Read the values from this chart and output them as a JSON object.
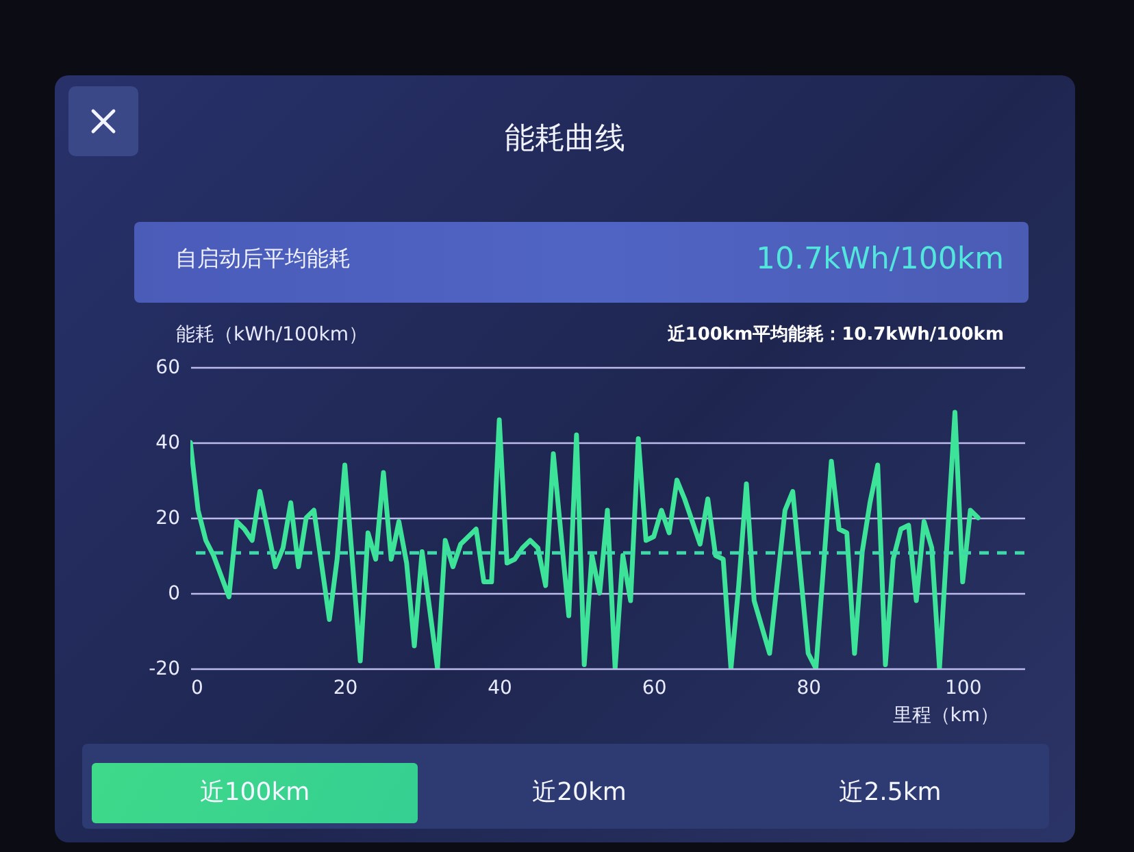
{
  "chart_data": {
    "type": "line",
    "title": "能耗曲线",
    "xlabel": "里程（km）",
    "ylabel": "能耗（kWh/100km）",
    "annotations": [
      "自启动后平均能耗",
      "10.7kWh/100km",
      "近100km平均能耗：10.7kWh/100km",
      "近100km",
      "近20km",
      "近2.5km"
    ],
    "x": [
      0,
      1,
      2,
      3,
      5,
      6,
      7,
      8,
      9,
      11,
      12,
      13,
      14,
      15,
      16,
      18,
      19,
      20,
      22,
      23,
      24,
      25,
      26,
      27,
      28,
      29,
      30,
      32,
      33,
      34,
      35,
      37,
      38,
      39,
      40,
      41,
      42,
      43,
      44,
      45,
      46,
      47,
      49,
      50,
      51,
      52,
      53,
      54,
      55,
      56,
      57,
      58,
      59,
      60,
      61,
      62,
      63,
      64,
      66,
      67,
      68,
      69,
      70,
      71,
      72,
      73,
      75,
      77,
      78,
      80,
      81,
      83,
      84,
      85,
      86,
      87,
      88,
      89,
      90,
      91,
      92,
      93,
      94,
      95,
      96,
      97,
      99,
      100,
      101,
      102
    ],
    "series": [
      {
        "color": "#3ee39a",
        "values": [
          40,
          22,
          14,
          10,
          -1,
          19,
          17,
          14,
          27,
          7,
          12,
          24,
          7,
          20,
          22,
          -7,
          9,
          34,
          -18,
          16,
          9,
          32,
          9,
          19,
          8,
          -14,
          11,
          -20,
          14,
          7,
          13,
          17,
          3,
          3,
          46,
          8,
          9,
          12,
          14,
          12,
          2,
          37,
          -6,
          42,
          -19,
          10,
          0,
          22,
          -20,
          10,
          -2,
          41,
          14,
          15,
          22,
          16,
          30,
          25,
          13,
          25,
          10,
          9,
          -20,
          2,
          29,
          -2,
          -16,
          22,
          27,
          -16,
          -20,
          35,
          17,
          16,
          -16,
          11,
          24,
          34,
          -19,
          9,
          17,
          18,
          -2,
          19,
          12,
          -20,
          48,
          3,
          22,
          20
        ]
      }
    ],
    "xlim": [
      0,
      108
    ],
    "xticks": [
      0,
      20,
      40,
      60,
      80,
      100
    ],
    "ylim": [
      -20,
      60
    ],
    "yticks": [
      -20,
      0,
      20,
      40,
      60
    ],
    "grid": "y",
    "ref_lines": [
      {
        "axis": "y",
        "value": 10.7,
        "color": "#3fd8a8",
        "line_style": "dashed"
      }
    ]
  }
}
